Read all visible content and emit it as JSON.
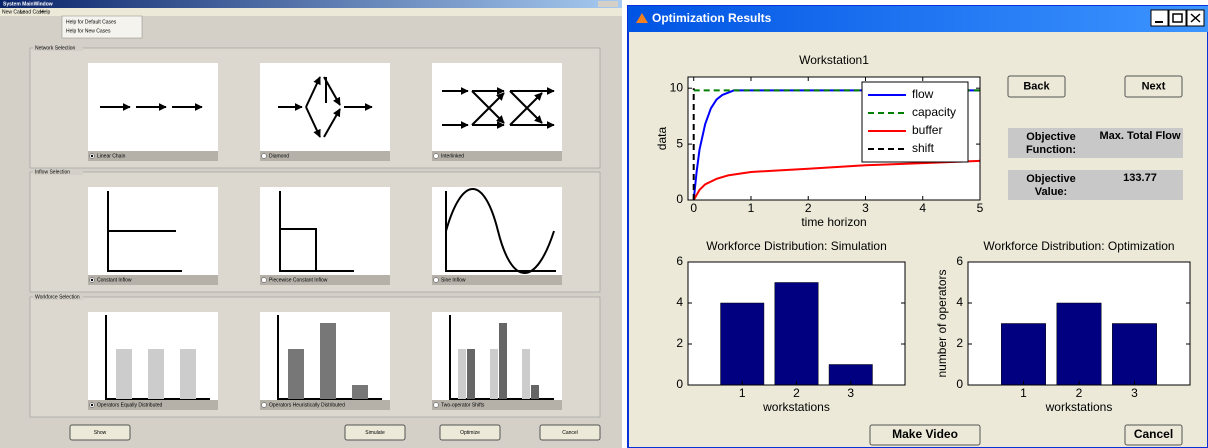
{
  "left_window": {
    "title": "System MainWindow",
    "menu": [
      "New Case",
      "Load Case",
      "Help"
    ],
    "help_menu": [
      "Help for Default Cases",
      "Help for New Cases"
    ],
    "groups": [
      {
        "title": "Network Selection",
        "options": [
          "Linear Chain",
          "Diamond",
          "Interlinked"
        ]
      },
      {
        "title": "Inflow Selection",
        "options": [
          "Constant Inflow",
          "Piecewise Constant Inflow",
          "Sine Inflow"
        ]
      },
      {
        "title": "Workforce Selection",
        "options": [
          "Operators Equally Distributed",
          "Operators Heuristically Distributed",
          "Two-operator Shifts"
        ]
      }
    ],
    "buttons": [
      "Show",
      "Simulate",
      "Optimize",
      "Cancel"
    ]
  },
  "right_window": {
    "title": "Optimization Results",
    "back": "Back",
    "next": "Next",
    "objective_function_label": "Objective Function:",
    "objective_function_value": "Max. Total Flow",
    "objective_value_label": "Objective Value:",
    "objective_value": 133.77,
    "make_video": "Make Video",
    "cancel": "Cancel"
  },
  "chart_data": [
    {
      "type": "line",
      "title": "Workstation1",
      "x_label": "time horizon",
      "y_label": "data",
      "xlim": [
        -0.1,
        5
      ],
      "ylim": [
        0,
        11
      ],
      "xticks": [
        0,
        1,
        2,
        3,
        4,
        5
      ],
      "yticks": [
        0,
        5,
        10
      ],
      "legend": "upper right",
      "grid": false,
      "series": [
        {
          "name": "flow",
          "color": "#0000ff",
          "linestyle": "-",
          "x": [
            0,
            0.05,
            0.1,
            0.2,
            0.3,
            0.4,
            0.5,
            0.6,
            0.7,
            1,
            2,
            3,
            4,
            5
          ],
          "values": [
            0,
            2.5,
            4.5,
            6.8,
            8.2,
            9,
            9.4,
            9.6,
            9.8,
            9.8,
            9.8,
            9.8,
            9.8,
            9.8
          ]
        },
        {
          "name": "capacity",
          "color": "#008000",
          "linestyle": "--",
          "x": [
            0,
            5
          ],
          "values": [
            9.8,
            9.8
          ]
        },
        {
          "name": "buffer",
          "color": "#ff0000",
          "linestyle": "-",
          "x": [
            0,
            0.1,
            0.2,
            0.4,
            0.6,
            1,
            2,
            3,
            4,
            5
          ],
          "values": [
            0,
            0.9,
            1.4,
            1.9,
            2.2,
            2.5,
            2.8,
            3.1,
            3.3,
            3.5
          ]
        },
        {
          "name": "shift",
          "color": "#000000",
          "linestyle": "--",
          "x": [
            0,
            0
          ],
          "values": [
            0,
            10
          ]
        }
      ]
    },
    {
      "type": "bar",
      "title": "Workforce Distribution: Simulation",
      "x_label": "workstations",
      "categories": [
        "1",
        "2",
        "3"
      ],
      "values": [
        4,
        5,
        1
      ],
      "color": "#000080",
      "ylim": [
        0,
        6
      ],
      "yticks": [
        0,
        2,
        4,
        6
      ],
      "grid": false
    },
    {
      "type": "bar",
      "title": "Workforce Distribution:  Optimization",
      "x_label": "workstations",
      "y_label": "number of operators",
      "categories": [
        "1",
        "2",
        "3"
      ],
      "values": [
        3,
        4,
        3
      ],
      "color": "#000080",
      "ylim": [
        0,
        6
      ],
      "yticks": [
        0,
        2,
        4,
        6
      ],
      "grid": false
    }
  ]
}
